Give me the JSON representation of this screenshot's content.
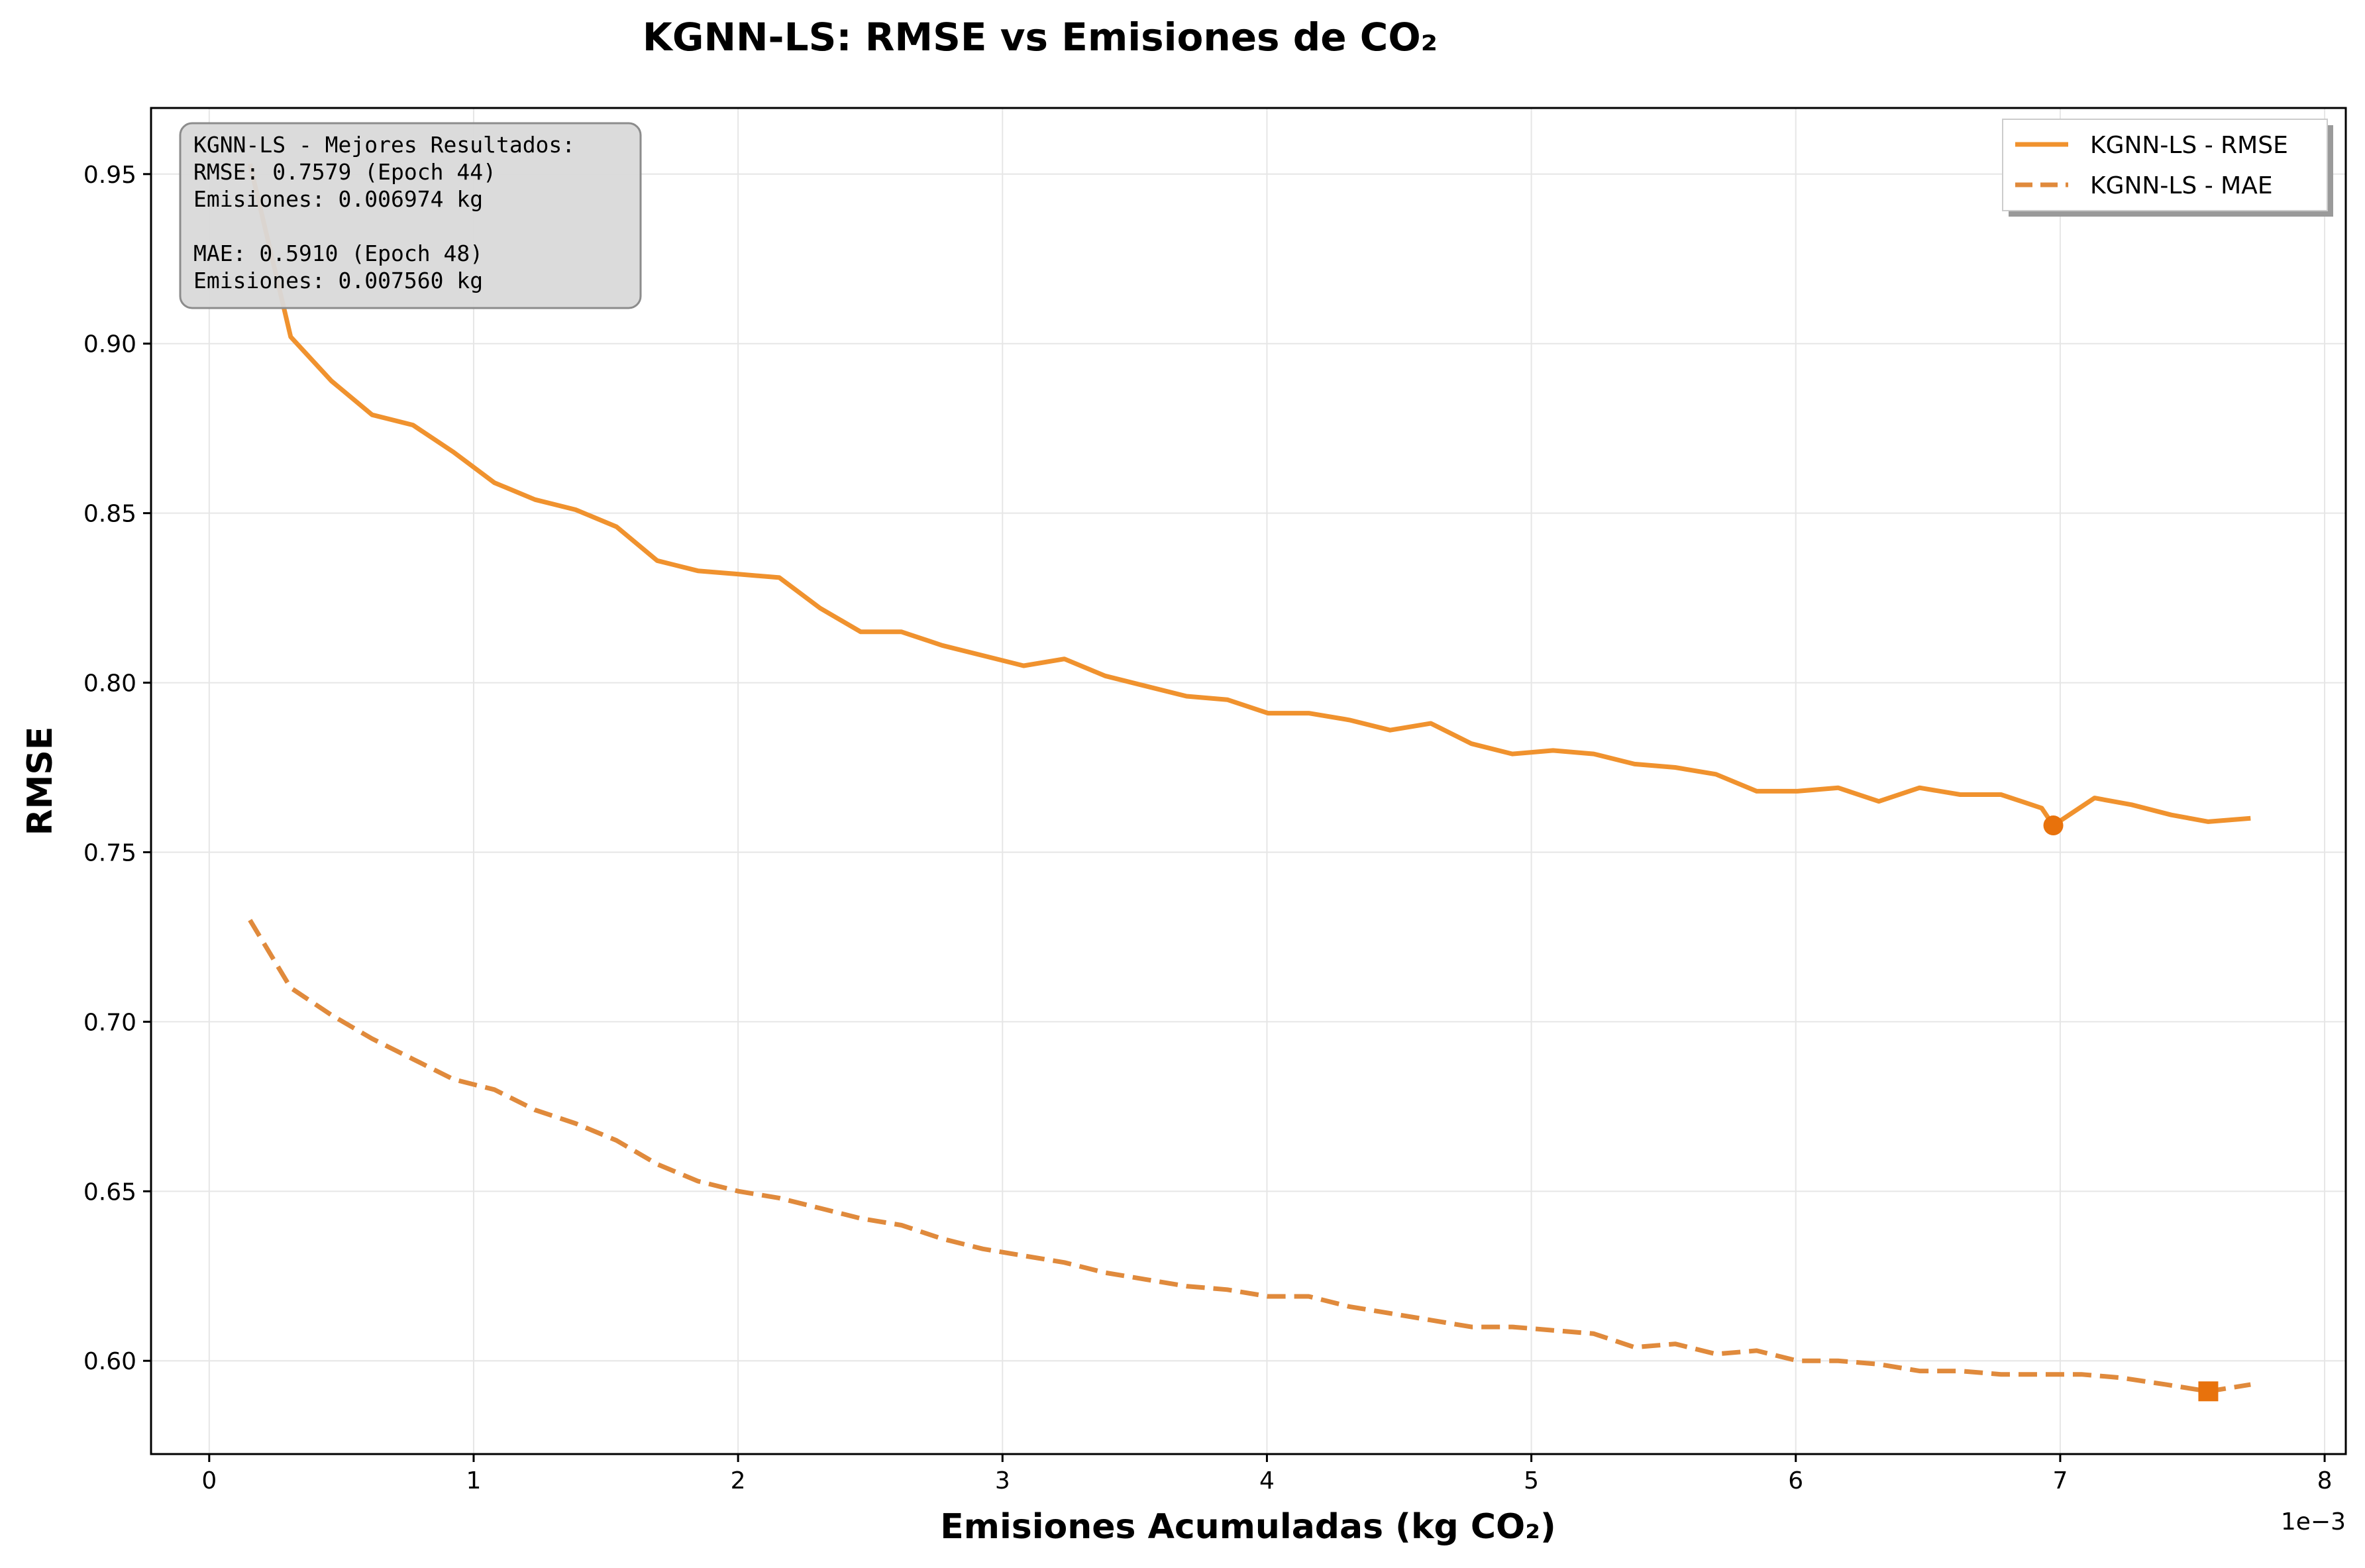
{
  "colors": {
    "rmse_line": "#F0922E",
    "mae_line": "#E08A3C",
    "best_marker": "#E8720C",
    "grid": "#E6E6E6",
    "annotation_bg": "#D9D9D9",
    "annotation_border": "#8C8C8C"
  },
  "chart_data": {
    "type": "line",
    "title": "KGNN-LS: RMSE vs Emisiones de CO₂",
    "xlabel": "Emisiones Acumuladas (kg CO₂)",
    "ylabel": "RMSE",
    "x_offset_label": "1e−3",
    "xlim": [
      -0.22,
      8.08
    ],
    "ylim": [
      0.5725,
      0.9695
    ],
    "x_ticks": [
      0,
      1,
      2,
      3,
      4,
      5,
      6,
      7,
      8
    ],
    "y_ticks": [
      0.6,
      0.65,
      0.7,
      0.75,
      0.8,
      0.85,
      0.9,
      0.95
    ],
    "grid": true,
    "legend_position": "top-right",
    "series": [
      {
        "name": "KGNN-LS - RMSE",
        "style": "solid",
        "x": [
          0.154,
          0.308,
          0.462,
          0.616,
          0.77,
          0.924,
          1.078,
          1.232,
          1.386,
          1.54,
          1.694,
          1.848,
          2.002,
          2.156,
          2.31,
          2.464,
          2.618,
          2.772,
          2.926,
          3.08,
          3.234,
          3.388,
          3.542,
          3.696,
          3.85,
          4.004,
          4.158,
          4.312,
          4.466,
          4.62,
          4.774,
          4.928,
          5.082,
          5.236,
          5.39,
          5.544,
          5.698,
          5.852,
          6.006,
          6.16,
          6.314,
          6.468,
          6.622,
          6.776,
          6.93,
          6.974,
          7.13,
          7.27,
          7.42,
          7.56,
          7.72
        ],
        "values": [
          0.953,
          0.902,
          0.889,
          0.879,
          0.876,
          0.868,
          0.859,
          0.854,
          0.851,
          0.846,
          0.836,
          0.833,
          0.832,
          0.831,
          0.822,
          0.815,
          0.815,
          0.811,
          0.808,
          0.805,
          0.807,
          0.802,
          0.799,
          0.796,
          0.795,
          0.791,
          0.791,
          0.789,
          0.786,
          0.788,
          0.782,
          0.779,
          0.78,
          0.779,
          0.776,
          0.775,
          0.773,
          0.768,
          0.768,
          0.769,
          0.765,
          0.769,
          0.767,
          0.767,
          0.763,
          0.7579,
          0.766,
          0.764,
          0.761,
          0.759,
          0.76
        ]
      },
      {
        "name": "KGNN-LS - MAE",
        "style": "dashed",
        "x": [
          0.154,
          0.308,
          0.462,
          0.616,
          0.77,
          0.924,
          1.078,
          1.232,
          1.386,
          1.54,
          1.694,
          1.848,
          2.002,
          2.156,
          2.31,
          2.464,
          2.618,
          2.772,
          2.926,
          3.08,
          3.234,
          3.388,
          3.542,
          3.696,
          3.85,
          4.004,
          4.158,
          4.312,
          4.466,
          4.62,
          4.774,
          4.928,
          5.082,
          5.236,
          5.39,
          5.544,
          5.698,
          5.852,
          6.006,
          6.16,
          6.314,
          6.468,
          6.622,
          6.776,
          6.93,
          7.08,
          7.23,
          7.4,
          7.56,
          7.72
        ],
        "values": [
          0.73,
          0.71,
          0.702,
          0.695,
          0.689,
          0.683,
          0.68,
          0.674,
          0.67,
          0.665,
          0.658,
          0.653,
          0.65,
          0.648,
          0.645,
          0.642,
          0.64,
          0.636,
          0.633,
          0.631,
          0.629,
          0.626,
          0.624,
          0.622,
          0.621,
          0.619,
          0.619,
          0.616,
          0.614,
          0.612,
          0.61,
          0.61,
          0.609,
          0.608,
          0.604,
          0.605,
          0.602,
          0.603,
          0.6,
          0.6,
          0.599,
          0.597,
          0.597,
          0.596,
          0.596,
          0.596,
          0.595,
          0.593,
          0.591,
          0.593
        ]
      }
    ],
    "best_points": [
      {
        "series": "KGNN-LS - RMSE",
        "x": 6.974,
        "y": 0.7579,
        "marker": "circle"
      },
      {
        "series": "KGNN-LS - MAE",
        "x": 7.56,
        "y": 0.591,
        "marker": "square"
      }
    ],
    "annotation_lines": [
      "KGNN-LS - Mejores Resultados:",
      "RMSE: 0.7579 (Epoch 44)",
      "Emisiones: 0.006974 kg",
      "",
      "MAE: 0.5910 (Epoch 48)",
      "Emisiones: 0.007560 kg"
    ]
  }
}
